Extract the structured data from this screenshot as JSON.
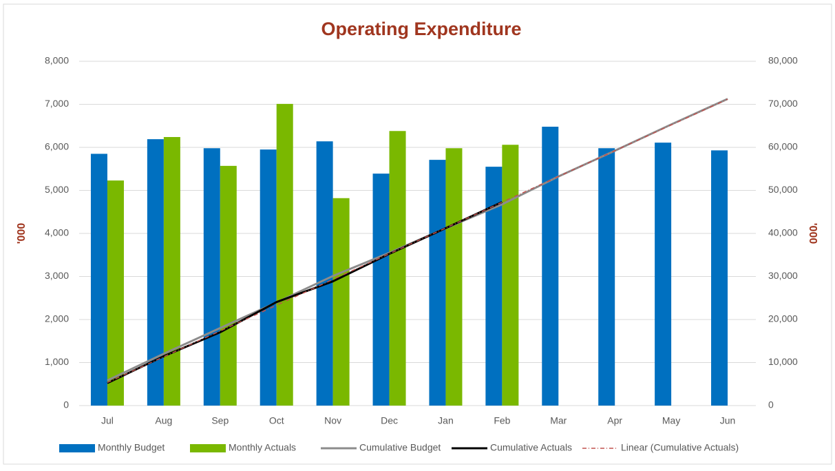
{
  "chart_data": {
    "type": "bar-line",
    "title": "Operating Expenditure",
    "y_label": "'000",
    "y2_label": "'000",
    "categories": [
      "Jul",
      "Aug",
      "Sep",
      "Oct",
      "Nov",
      "Dec",
      "Jan",
      "Feb",
      "Mar",
      "Apr",
      "May",
      "Jun"
    ],
    "series": [
      {
        "name": "Monthly Budget",
        "kind": "bar",
        "color": "#0070c0",
        "values": [
          5850,
          6190,
          5980,
          5950,
          6140,
          5390,
          5710,
          5550,
          6480,
          5980,
          6110,
          5930
        ]
      },
      {
        "name": "Monthly Actuals",
        "kind": "bar",
        "color": "#7ab800",
        "values": [
          5230,
          6240,
          5570,
          7010,
          4820,
          6380,
          5980,
          6060,
          null,
          null,
          null,
          null
        ]
      },
      {
        "name": "Cumulative Budget",
        "kind": "line",
        "axis": "y2",
        "color": "#8c8c8c",
        "values": [
          5850,
          12040,
          18020,
          23970,
          30110,
          35500,
          41210,
          46760,
          53240,
          59220,
          65330,
          71260
        ]
      },
      {
        "name": "Cumulative Actuals",
        "kind": "line",
        "axis": "y2",
        "color": "#000000",
        "values": [
          5230,
          11470,
          17040,
          24050,
          28870,
          35250,
          41230,
          47290,
          null,
          null,
          null,
          null
        ]
      },
      {
        "name": "Linear (Cumulative Actuals)",
        "kind": "trend",
        "axis": "y2",
        "color": "#c0504d",
        "values": [
          5360,
          11344,
          17328,
          23312,
          29296,
          35280,
          41264,
          47248,
          53232,
          59216,
          65200,
          71184
        ]
      }
    ],
    "ylim": [
      0,
      8000
    ],
    "yticks": [
      0,
      {
        "value": 1000,
        "label": "1,000"
      },
      {
        "value": 2000,
        "label": "2,000"
      },
      {
        "value": 3000,
        "label": "3,000"
      },
      {
        "value": 4000,
        "label": "4,000"
      },
      {
        "value": 5000,
        "label": "5,000"
      },
      {
        "value": 6000,
        "label": "6,000"
      },
      {
        "value": 7000,
        "label": "7,000"
      },
      {
        "value": 8000,
        "label": "8,000"
      }
    ],
    "y2lim": [
      0,
      80000
    ],
    "y2ticks": [
      0,
      {
        "value": 10000,
        "label": "10,000"
      },
      {
        "value": 20000,
        "label": "20,000"
      },
      {
        "value": 30000,
        "label": "30,000"
      },
      {
        "value": 40000,
        "label": "40,000"
      },
      {
        "value": 50000,
        "label": "50,000"
      },
      {
        "value": 60000,
        "label": "60,000"
      },
      {
        "value": 70000,
        "label": "70,000"
      },
      {
        "value": 80000,
        "label": "80,000"
      }
    ],
    "grid": true,
    "legend": "bottom"
  }
}
